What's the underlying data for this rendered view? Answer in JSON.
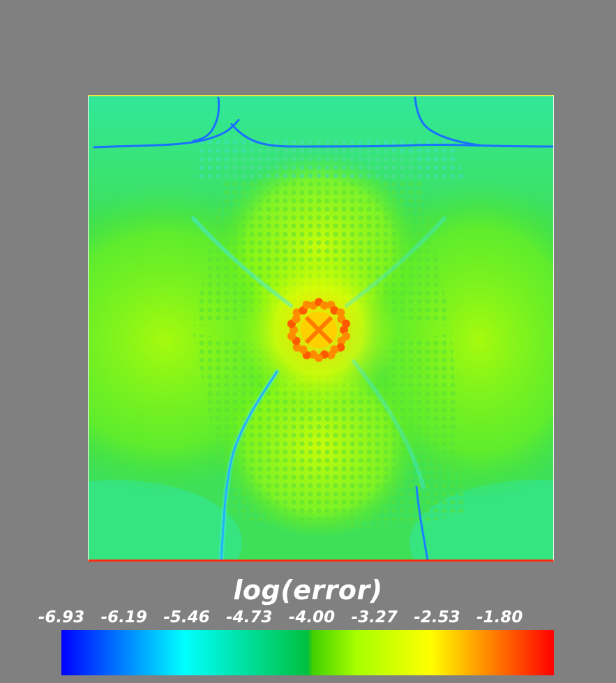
{
  "chart_data": {
    "type": "heatmap",
    "title": "",
    "colorbar": {
      "label": "log(error)",
      "ticks": [
        "-6.93",
        "-6.19",
        "-5.46",
        "-4.73",
        "-4.00",
        "-3.27",
        "-2.53",
        "-1.80"
      ],
      "range": [
        -6.93,
        -1.8
      ],
      "colors": [
        "#0000ff",
        "#00ffff",
        "#00c040",
        "#7fff00",
        "#ffff00",
        "#ff8c00",
        "#ff0000"
      ]
    },
    "field": {
      "description_values": {
        "background_level": -4.5,
        "center_peak": -2.2,
        "ring_peak": -1.9,
        "minimum_curves": -6.2
      }
    },
    "colors": {
      "page_background": "#808080",
      "text": "#ffffff"
    }
  }
}
